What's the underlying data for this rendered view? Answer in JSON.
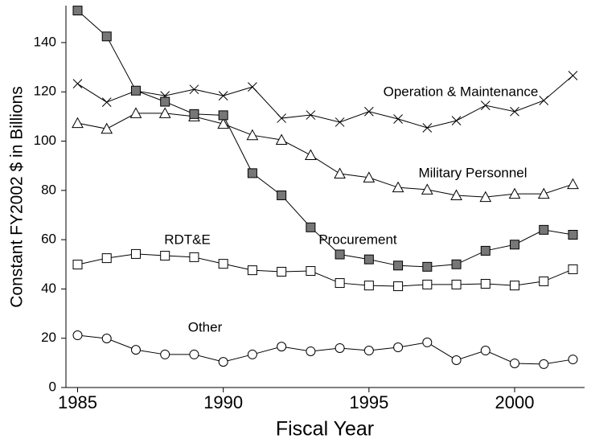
{
  "chart_data": {
    "type": "line",
    "xlabel": "Fiscal Year",
    "ylabel": "Constant FY2002 $ in Billions",
    "x": [
      1985,
      1986,
      1987,
      1988,
      1989,
      1990,
      1991,
      1992,
      1993,
      1994,
      1995,
      1996,
      1997,
      1998,
      1999,
      2000,
      2001,
      2002
    ],
    "xlim": [
      1984.6,
      2002.4
    ],
    "xticks": [
      1985,
      1990,
      1995,
      2000
    ],
    "ylim": [
      0,
      155
    ],
    "yticks": [
      0,
      20,
      40,
      60,
      80,
      100,
      120,
      140
    ],
    "series": [
      {
        "name": "Operation & Maintenance",
        "color": "#000000",
        "marker": "x",
        "values": [
          123.3,
          115.8,
          120.4,
          118.4,
          121,
          118.4,
          122,
          109.3,
          110.6,
          107.7,
          112,
          109,
          105.4,
          108.3,
          114.5,
          112,
          116.5,
          126.6
        ]
      },
      {
        "name": "Military Personnel",
        "color": "#000000",
        "marker": "triangle",
        "values": [
          107.3,
          105,
          111.3,
          111.3,
          110,
          107,
          102.4,
          100.5,
          94.3,
          86.8,
          85.2,
          81.2,
          80.3,
          78,
          77.3,
          78.6,
          78.6,
          82.5
        ]
      },
      {
        "name": "Procurement",
        "color": "#000000",
        "marker": "square-filled",
        "values": [
          153,
          142.5,
          120.5,
          116,
          111,
          110.5,
          87,
          78,
          65,
          54,
          52,
          49.5,
          49,
          50,
          55.5,
          58,
          64,
          62
        ]
      },
      {
        "name": "RDT&E",
        "color": "#000000",
        "marker": "square",
        "values": [
          49.9,
          52.5,
          54.2,
          53.5,
          52.9,
          50.2,
          47.6,
          47,
          47.3,
          42.4,
          41.4,
          41.1,
          41.8,
          41.8,
          42.1,
          41.4,
          43.1,
          48
        ]
      },
      {
        "name": "Other",
        "color": "#000000",
        "marker": "circle",
        "values": [
          21.2,
          19.9,
          15.3,
          13.4,
          13.4,
          10.4,
          13.4,
          16.6,
          14.7,
          16,
          15,
          16.3,
          18.3,
          11.1,
          15,
          9.8,
          9.5,
          11.4
        ]
      }
    ]
  }
}
